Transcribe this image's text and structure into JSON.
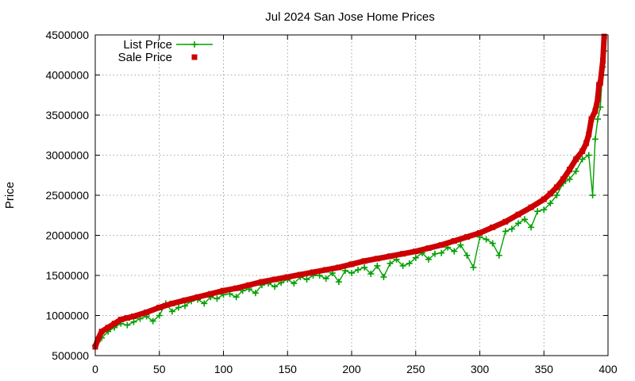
{
  "chart_data": {
    "type": "line",
    "title": "Jul 2024 San Jose Home Prices",
    "xlabel": "",
    "ylabel": "Price",
    "xlim": [
      0,
      400
    ],
    "ylim": [
      500000,
      4500000
    ],
    "xticks": [
      0,
      50,
      100,
      150,
      200,
      250,
      300,
      350,
      400
    ],
    "yticks": [
      500000,
      1000000,
      1500000,
      2000000,
      2500000,
      3000000,
      3500000,
      4000000,
      4500000
    ],
    "grid": true,
    "legend_position": "top-left",
    "series": [
      {
        "name": "List Price",
        "color": "#00a000",
        "marker": "plus",
        "style": "linespoints",
        "description": "Listing price for each sold home; fluctuates around the sale price, mostly slightly below it",
        "x": [
          0,
          5,
          10,
          15,
          20,
          25,
          30,
          35,
          40,
          45,
          50,
          55,
          60,
          65,
          70,
          75,
          80,
          85,
          90,
          95,
          100,
          105,
          110,
          115,
          120,
          125,
          130,
          135,
          140,
          145,
          150,
          155,
          160,
          165,
          170,
          175,
          180,
          185,
          190,
          195,
          200,
          205,
          210,
          215,
          220,
          225,
          230,
          235,
          240,
          245,
          250,
          255,
          260,
          265,
          270,
          275,
          280,
          285,
          290,
          295,
          300,
          305,
          310,
          315,
          320,
          325,
          330,
          335,
          340,
          345,
          350,
          355,
          360,
          365,
          370,
          375,
          380,
          385,
          388,
          390,
          392,
          394,
          396,
          397
        ],
        "values": [
          620000,
          720000,
          800000,
          850000,
          900000,
          880000,
          920000,
          960000,
          990000,
          930000,
          1000000,
          1150000,
          1050000,
          1100000,
          1120000,
          1180000,
          1200000,
          1150000,
          1230000,
          1210000,
          1260000,
          1270000,
          1230000,
          1310000,
          1330000,
          1280000,
          1380000,
          1400000,
          1360000,
          1410000,
          1450000,
          1400000,
          1480000,
          1450000,
          1500000,
          1500000,
          1460000,
          1530000,
          1420000,
          1560000,
          1530000,
          1570000,
          1600000,
          1520000,
          1620000,
          1480000,
          1650000,
          1700000,
          1620000,
          1650000,
          1720000,
          1780000,
          1700000,
          1770000,
          1780000,
          1850000,
          1800000,
          1880000,
          1750000,
          1600000,
          1980000,
          1950000,
          1900000,
          1750000,
          2050000,
          2080000,
          2150000,
          2200000,
          2100000,
          2300000,
          2320000,
          2400000,
          2500000,
          2650000,
          2700000,
          2800000,
          2950000,
          3000000,
          2500000,
          3200000,
          3450000,
          3600000,
          4100000,
          4300000
        ]
      },
      {
        "name": "Sale Price",
        "color": "#cc0000",
        "marker": "square",
        "style": "points",
        "description": "Final sale price for each of ~398 homes, sorted ascending",
        "x": [
          0,
          2,
          5,
          10,
          15,
          20,
          25,
          30,
          40,
          50,
          60,
          70,
          80,
          90,
          100,
          110,
          120,
          130,
          140,
          150,
          160,
          170,
          180,
          190,
          200,
          210,
          220,
          230,
          240,
          250,
          260,
          270,
          280,
          290,
          300,
          310,
          320,
          330,
          340,
          350,
          355,
          360,
          365,
          370,
          375,
          380,
          383,
          385,
          387,
          390,
          392,
          393,
          394,
          396,
          397
        ],
        "values": [
          610000,
          700000,
          800000,
          850000,
          900000,
          950000,
          970000,
          990000,
          1040000,
          1100000,
          1150000,
          1190000,
          1230000,
          1270000,
          1310000,
          1340000,
          1380000,
          1420000,
          1450000,
          1480000,
          1510000,
          1540000,
          1570000,
          1600000,
          1640000,
          1680000,
          1710000,
          1740000,
          1770000,
          1800000,
          1840000,
          1880000,
          1930000,
          1980000,
          2030000,
          2100000,
          2170000,
          2260000,
          2350000,
          2450000,
          2520000,
          2600000,
          2700000,
          2820000,
          2950000,
          3050000,
          3150000,
          3260000,
          3450000,
          3550000,
          3700000,
          3880000,
          3900000,
          4180000,
          4480000
        ]
      }
    ]
  }
}
